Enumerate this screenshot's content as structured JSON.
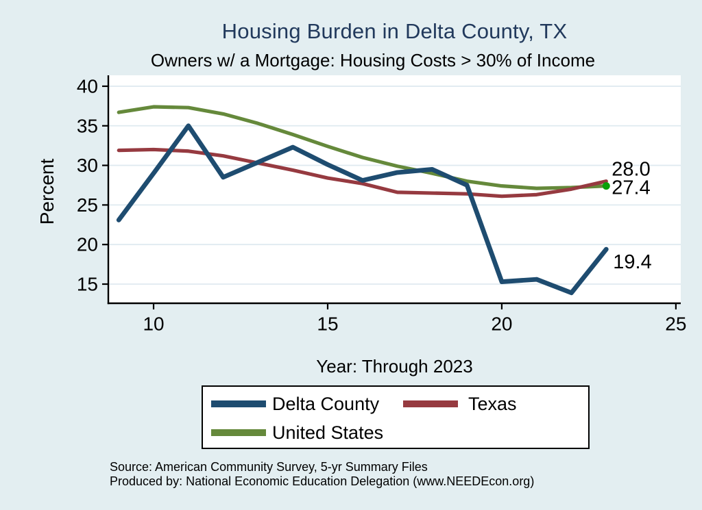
{
  "header": {
    "title": "Housing Burden in Delta County, TX",
    "subtitle": "Owners w/ a Mortgage: Housing Costs > 30% of Income"
  },
  "chart_data": {
    "type": "line",
    "title": "Housing Burden in Delta County, TX",
    "subtitle": "Owners w/ a Mortgage: Housing Costs > 30% of Income",
    "xlabel": "Year: Through 2023",
    "ylabel": "Percent",
    "years": [
      2009,
      2010,
      2011,
      2012,
      2013,
      2014,
      2015,
      2016,
      2017,
      2018,
      2019,
      2020,
      2021,
      2022,
      2023
    ],
    "x": [
      9,
      10,
      11,
      12,
      13,
      14,
      15,
      16,
      17,
      18,
      19,
      20,
      21,
      22,
      23
    ],
    "axes": {
      "xlim": [
        8.7,
        25.14
      ],
      "ylim": [
        12.58,
        41.38
      ],
      "xticks": [
        10,
        15,
        20,
        25
      ],
      "yticks": [
        15,
        20,
        25,
        30,
        35,
        40
      ],
      "grid": "horizontal-only"
    },
    "series": [
      {
        "name": "Delta County",
        "color": "#1e4c70",
        "width": 6.8,
        "end_label": "19.4",
        "values": [
          23.1,
          29.0,
          35.0,
          28.5,
          30.4,
          32.3,
          30.1,
          28.1,
          29.1,
          29.5,
          27.5,
          15.3,
          15.6,
          13.9,
          19.4
        ]
      },
      {
        "name": "Texas",
        "color": "#963a40",
        "width": 5.2,
        "end_label": "28.0",
        "values": [
          31.9,
          32.0,
          31.8,
          31.2,
          30.3,
          29.4,
          28.4,
          27.7,
          26.6,
          26.5,
          26.4,
          26.1,
          26.3,
          27.0,
          28.0
        ]
      },
      {
        "name": "United States",
        "color": "#65893b",
        "width": 5.2,
        "end_label": "27.4",
        "end_marker_color": "#0aa00a",
        "values": [
          36.7,
          37.4,
          37.3,
          36.5,
          35.3,
          33.9,
          32.4,
          31.0,
          29.9,
          29.0,
          28.0,
          27.4,
          27.1,
          27.2,
          27.4
        ]
      }
    ],
    "legend_position": "bottom"
  },
  "source": {
    "line1": "Source: American Community Survey, 5-yr Summary Files",
    "line2": "Produced by: National Economic Education Delegation (www.NEEDEcon.org)"
  },
  "colors": {
    "background": "#e3eef1",
    "plot_background": "#ffffff",
    "gridline": "#dfeaf0",
    "axis": "#000000",
    "title": "#21395c"
  }
}
